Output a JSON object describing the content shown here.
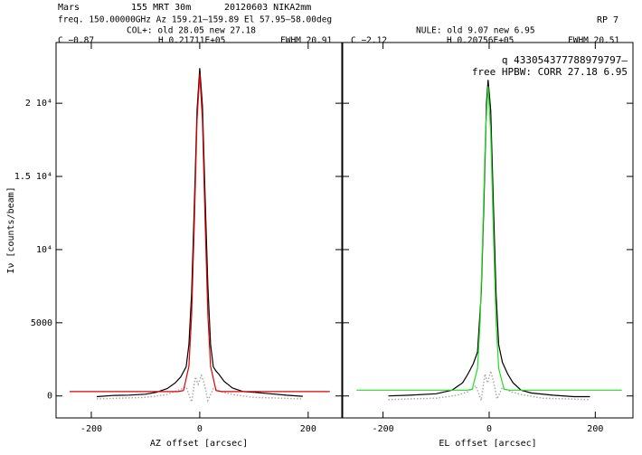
{
  "header": {
    "source": "Mars",
    "telescope": "155 MRT 30m",
    "date": "20120603 NIKA2mm",
    "freq": "freq. 150.00000GHz  Az 159.21–159.89  El 57.95–58.00deg",
    "col": "COL+: old   28.05 new   27.18",
    "nule": "NULE: old   9.07 new   6.95",
    "rp": "RP    7",
    "c_left": "C  −0.87",
    "h_left": "H  0.21711E+05",
    "fwhm_left": "FWHM  20.91",
    "c_right": "C  −2.12",
    "h_right": "H  0.20756E+05",
    "fwhm_right": "FWHM  20.51",
    "note1": "q 433054377788979797–",
    "note2": "free HPBW: CORR  27.18   6.95"
  },
  "chart_data": [
    {
      "type": "line",
      "xlabel": "AZ offset [arcsec]",
      "ylabel": "Iν [counts/beam]",
      "xlim": [
        -265,
        262
      ],
      "xticks": [
        -200,
        0,
        200
      ],
      "ylim": [
        -1500,
        24150
      ],
      "yticks": [
        0,
        5000,
        {
          "value": 10000,
          "label": "10⁴"
        },
        {
          "value": 15000,
          "label": "1.5 10⁴"
        },
        {
          "value": 20000,
          "label": "2 10⁴"
        }
      ],
      "series": [
        {
          "color": "#aaaaaa",
          "style": "dotted",
          "x": [
            -190,
            -150,
            -100,
            -60,
            -40,
            -25,
            -15,
            -8,
            -3,
            3,
            8,
            15,
            25,
            40,
            60,
            100,
            150,
            190
          ],
          "values": [
            -200,
            -150,
            -100,
            100,
            400,
            600,
            -400,
            1300,
            800,
            1400,
            900,
            -300,
            500,
            300,
            100,
            -100,
            -150,
            -200
          ]
        },
        {
          "color": "#000000",
          "style": "solid",
          "x": [
            -190,
            -160,
            -130,
            -100,
            -80,
            -60,
            -45,
            -35,
            -25,
            -20,
            -15,
            -10,
            -5,
            0,
            5,
            10,
            15,
            20,
            25,
            30,
            35,
            45,
            60,
            80,
            100,
            130,
            160,
            190
          ],
          "values": [
            -50,
            30,
            60,
            120,
            250,
            500,
            900,
            1300,
            2000,
            3500,
            7000,
            13000,
            19500,
            22400,
            19800,
            13500,
            7500,
            3500,
            2000,
            1700,
            1500,
            1000,
            550,
            300,
            250,
            150,
            50,
            -20
          ]
        },
        {
          "color": "#dd0000",
          "style": "solid",
          "x": [
            -240,
            -60,
            -40,
            -30,
            -20,
            -15,
            -10,
            -5,
            0,
            5,
            10,
            15,
            20,
            30,
            40,
            60,
            240
          ],
          "values": [
            300,
            300,
            300,
            372,
            2015,
            5510,
            11810,
            18820,
            22011,
            18820,
            11810,
            5510,
            2015,
            372,
            300,
            300,
            300
          ]
        }
      ]
    },
    {
      "type": "line",
      "xlabel": "EL offset [arcsec]",
      "xlim": [
        -276,
        271
      ],
      "xticks": [
        -200,
        0,
        200
      ],
      "ylim": [
        -1500,
        24150
      ],
      "yticks": [
        0,
        5000,
        10000,
        15000,
        20000
      ],
      "series": [
        {
          "color": "#aaaaaa",
          "style": "dotted",
          "x": [
            -190,
            -150,
            -100,
            -60,
            -40,
            -25,
            -15,
            -8,
            -3,
            3,
            8,
            15,
            25,
            40,
            60,
            100,
            150,
            190
          ],
          "values": [
            -250,
            -200,
            -150,
            50,
            300,
            700,
            -300,
            1500,
            900,
            1700,
            1000,
            -200,
            600,
            300,
            100,
            -150,
            -200,
            -250
          ]
        },
        {
          "color": "#000000",
          "style": "solid",
          "x": [
            -190,
            -150,
            -100,
            -70,
            -50,
            -40,
            -30,
            -22,
            -15,
            -10,
            -5,
            -2,
            3,
            8,
            13,
            18,
            25,
            35,
            45,
            60,
            80,
            120,
            160,
            190
          ],
          "values": [
            0,
            50,
            150,
            400,
            900,
            1500,
            2200,
            3000,
            7000,
            13000,
            20000,
            21600,
            19500,
            13000,
            7000,
            3500,
            2300,
            1500,
            900,
            400,
            200,
            50,
            -50,
            -50
          ]
        },
        {
          "color": "#22dd22",
          "style": "solid",
          "x": [
            -250,
            -42,
            -32,
            -22,
            -17,
            -12,
            -7,
            -2,
            3,
            8,
            13,
            18,
            28,
            38,
            250
          ],
          "values": [
            400,
            400,
            455,
            1886,
            5110,
            11130,
            18000,
            21156,
            18000,
            11130,
            5110,
            1886,
            455,
            400,
            400
          ]
        }
      ]
    }
  ]
}
